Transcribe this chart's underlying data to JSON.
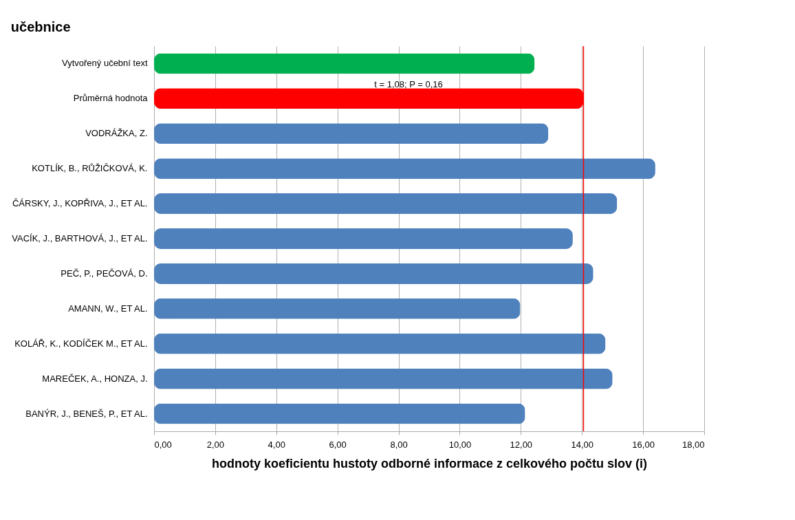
{
  "chart_data": {
    "type": "bar",
    "orientation": "horizontal",
    "title": "učebnice",
    "xlabel": "hodnoty koeficientu hustoty odborné informace z celkového počtu slov (i)",
    "categories": [
      "Vytvořený učební text",
      "Průměrná hodnota",
      "VODRÁŽKA, Z.",
      "KOTLÍK, B., RŮŽIČKOVÁ, K.",
      "ČÁRSKY, J., KOPŘIVA, J., ET AL.",
      "VACÍK, J., BARTHOVÁ, J., ET AL.",
      "PEČ, P., PEČOVÁ, D.",
      "AMANN, W., ET AL.",
      "KOLÁŘ, K., KODÍČEK M., ET AL.",
      "MAREČEK, A., HONZA, J.",
      "BANÝR, J., BENEŠ, P., ET AL."
    ],
    "values": [
      12.45,
      14.05,
      12.9,
      16.4,
      15.15,
      13.7,
      14.37,
      11.98,
      14.77,
      15.0,
      12.14
    ],
    "colors": [
      "#00b050",
      "#ff0000",
      "#4f81bd",
      "#4f81bd",
      "#4f81bd",
      "#4f81bd",
      "#4f81bd",
      "#4f81bd",
      "#4f81bd",
      "#4f81bd",
      "#4f81bd"
    ],
    "xlim": [
      0,
      18
    ],
    "xticks": [
      {
        "value": 0,
        "label": "0,00"
      },
      {
        "value": 2,
        "label": "2,00"
      },
      {
        "value": 4,
        "label": "4,00"
      },
      {
        "value": 6,
        "label": "6,00"
      },
      {
        "value": 8,
        "label": "8,00"
      },
      {
        "value": 10,
        "label": "10,00"
      },
      {
        "value": 12,
        "label": "12,00"
      },
      {
        "value": 14,
        "label": "14,00"
      },
      {
        "value": 16,
        "label": "16,00"
      },
      {
        "value": 18,
        "label": "18,00"
      }
    ],
    "ref_lines": [
      {
        "axis": "x",
        "value": 14.05,
        "color": "#ff0000"
      }
    ],
    "annotations": [
      "t = 1,08; P = 0,16"
    ],
    "grid": "x"
  }
}
